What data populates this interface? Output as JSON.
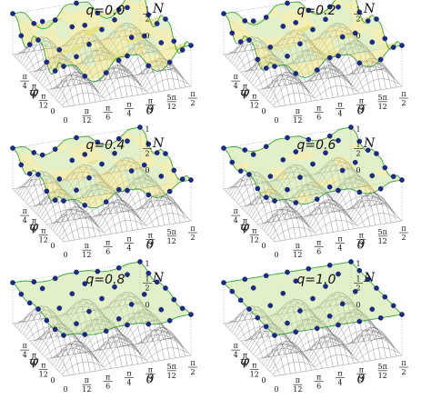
{
  "chart_data": [
    {
      "type": "surface3d",
      "title": "q=0.0",
      "q": 0.0,
      "xlabel": "θ",
      "ylabel": "φ",
      "zlabel": "N",
      "xlim": [
        "0",
        "π/2"
      ],
      "ylim": [
        "0",
        "π/2"
      ],
      "zlim": [
        0,
        1
      ],
      "x_ticks": [
        "0",
        "π/12",
        "π/6",
        "π/4",
        "π/3",
        "5π/12",
        "π/2"
      ],
      "y_ticks": [
        "0",
        "π/12",
        "π/6",
        "π/4"
      ],
      "z_ticks": [
        "0",
        "1/2",
        "1"
      ]
    },
    {
      "type": "surface3d",
      "title": "q=0.2",
      "q": 0.2,
      "xlabel": "θ",
      "ylabel": "φ",
      "zlabel": "N",
      "xlim": [
        "0",
        "π/2"
      ],
      "ylim": [
        "0",
        "π/2"
      ],
      "zlim": [
        0,
        1
      ],
      "x_ticks": [
        "0",
        "π/12",
        "π/6",
        "π/4",
        "π/3",
        "5π/12",
        "π/2"
      ],
      "y_ticks": [
        "0",
        "π/12",
        "π/6",
        "π/4"
      ],
      "z_ticks": [
        "0",
        "1/2",
        "1"
      ]
    },
    {
      "type": "surface3d",
      "title": "q=0.4",
      "q": 0.4,
      "xlabel": "θ",
      "ylabel": "φ",
      "zlabel": "N",
      "xlim": [
        "0",
        "π/2"
      ],
      "ylim": [
        "0",
        "π/2"
      ],
      "zlim": [
        0,
        1
      ],
      "x_ticks": [
        "0",
        "π/12",
        "π/6",
        "π/4",
        "π/3",
        "5π/12",
        "π/2"
      ],
      "y_ticks": [
        "0",
        "π/12",
        "π/6",
        "π/4"
      ],
      "z_ticks": [
        "0",
        "1/2",
        "1"
      ]
    },
    {
      "type": "surface3d",
      "title": "q=0.6",
      "q": 0.6,
      "xlabel": "θ",
      "ylabel": "φ",
      "zlabel": "N",
      "xlim": [
        "0",
        "π/2"
      ],
      "ylim": [
        "0",
        "π/2"
      ],
      "zlim": [
        0,
        1
      ],
      "x_ticks": [
        "0",
        "π/12",
        "π/6",
        "π/4",
        "π/3",
        "5π/12",
        "π/2"
      ],
      "y_ticks": [
        "0",
        "π/12",
        "π/6",
        "π/4"
      ],
      "z_ticks": [
        "0",
        "1/2",
        "1"
      ]
    },
    {
      "type": "surface3d",
      "title": "q=0.8",
      "q": 0.8,
      "xlabel": "θ",
      "ylabel": "φ",
      "zlabel": "N",
      "xlim": [
        "0",
        "π/2"
      ],
      "ylim": [
        "0",
        "π/2"
      ],
      "zlim": [
        0,
        1
      ],
      "x_ticks": [
        "0",
        "π/12",
        "π/6",
        "π/4",
        "π/3",
        "5π/12",
        "π/2"
      ],
      "y_ticks": [
        "0",
        "π/12",
        "π/6",
        "π/4"
      ],
      "z_ticks": [
        "0",
        "1/2",
        "1"
      ]
    },
    {
      "type": "surface3d",
      "title": "q=1.0",
      "q": 1.0,
      "xlabel": "θ",
      "ylabel": "φ",
      "zlabel": "N",
      "xlim": [
        "0",
        "π/2"
      ],
      "ylim": [
        "0",
        "π/2"
      ],
      "zlim": [
        0,
        1
      ],
      "x_ticks": [
        "0",
        "π/12",
        "π/6",
        "π/4",
        "π/3",
        "5π/12",
        "π/2"
      ],
      "y_ticks": [
        "0",
        "π/12",
        "π/6",
        "π/4"
      ],
      "z_ticks": [
        "0",
        "1/2",
        "1"
      ]
    }
  ],
  "colors": {
    "upper_surface": "#c8e39a",
    "upper_surface_warm": "#e8e07a",
    "edge_line": "#3aa53a",
    "mesh": "#6a6a6a",
    "marker": "#1a2a8a",
    "box": "#9a9a9a"
  }
}
